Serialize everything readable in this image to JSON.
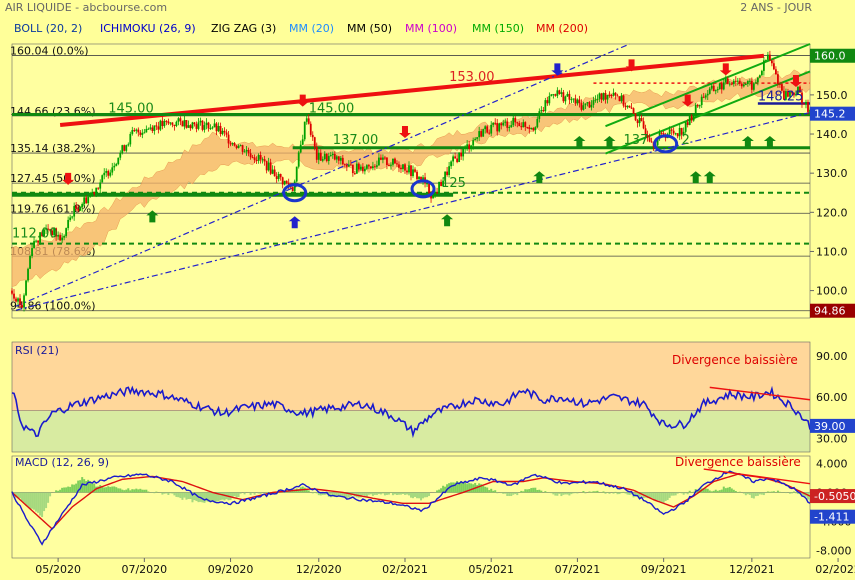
{
  "header": {
    "source": "AIR LIQUIDE - abcbourse.com",
    "period": "2 ANS - JOUR",
    "indicators": [
      {
        "label": "BOLL (20, 2)",
        "color": "#0b3a9e"
      },
      {
        "label": "ICHIMOKU (26, 9)",
        "color": "#0000cc"
      },
      {
        "label": "ZIG ZAG (3)",
        "color": "#000000"
      },
      {
        "label": "MM (20)",
        "color": "#1e8cff"
      },
      {
        "label": "MM (50)",
        "color": "#000000"
      },
      {
        "label": "MM (100)",
        "color": "#cc00cc"
      },
      {
        "label": "MM (150)",
        "color": "#00aa00"
      },
      {
        "label": "MM (200)",
        "color": "#dd0000"
      }
    ]
  },
  "x_axis": {
    "labels": [
      "05/2020",
      "07/2020",
      "09/2020",
      "12/2020",
      "02/2021",
      "05/2021",
      "07/2021",
      "09/2021",
      "12/2021",
      "02/2022"
    ],
    "label_index": [
      23,
      66,
      109,
      153,
      196,
      239,
      282,
      325,
      369,
      412
    ]
  },
  "chart_data": [
    {
      "id": "price",
      "type": "candlestick",
      "ylim": [
        93,
        163
      ],
      "y_ticks": [
        100,
        110,
        120,
        130,
        140,
        150
      ],
      "last_price": "145.2",
      "top_tag": "160.0",
      "low_tag": "94.86",
      "fib_levels": [
        {
          "value": 160.04,
          "label": "160.04  (0.0%)"
        },
        {
          "value": 144.66,
          "label": "144.66  (23.6%)"
        },
        {
          "value": 135.14,
          "label": "135.14  (38.2%)"
        },
        {
          "value": 127.45,
          "label": "127.45  (50.0%)"
        },
        {
          "value": 119.76,
          "label": "119.76  (61.8%)"
        },
        {
          "value": 108.81,
          "label": "108.81  (78.6%)"
        },
        {
          "value": 94.86,
          "label": "94.86  (100.0%)"
        }
      ],
      "annotations": [
        {
          "text": "153.00",
          "color": "#dd2222",
          "x": 218,
          "y": 153
        },
        {
          "text": "145.00",
          "color": "#1a8a1a",
          "x": 48,
          "y": 145
        },
        {
          "text": "145.00",
          "color": "#1a8a1a",
          "x": 148,
          "y": 145
        },
        {
          "text": "137.00",
          "color": "#1a8a1a",
          "x": 160,
          "y": 137
        },
        {
          "text": "137",
          "color": "#1a8a1a",
          "x": 305,
          "y": 137
        },
        {
          "text": "2",
          "color": "#1a8a1a",
          "x": 334,
          "y": 137
        },
        {
          "text": "125",
          "color": "#1a8a1a",
          "x": 214,
          "y": 126
        },
        {
          "text": "112.00",
          "color": "#1a8a1a",
          "x": 0,
          "y": 113
        },
        {
          "text": "148.25",
          "color": "#1a1a99",
          "x": 372,
          "y": 148
        }
      ],
      "price_path": [
        [
          0,
          100
        ],
        [
          5,
          96
        ],
        [
          10,
          112
        ],
        [
          18,
          116
        ],
        [
          25,
          113
        ],
        [
          30,
          120
        ],
        [
          40,
          125
        ],
        [
          50,
          132
        ],
        [
          60,
          140
        ],
        [
          70,
          142
        ],
        [
          85,
          143
        ],
        [
          100,
          142
        ],
        [
          110,
          138
        ],
        [
          125,
          133
        ],
        [
          135,
          128
        ],
        [
          140,
          126
        ],
        [
          147,
          145
        ],
        [
          152,
          134
        ],
        [
          160,
          134
        ],
        [
          170,
          131
        ],
        [
          185,
          133
        ],
        [
          195,
          132
        ],
        [
          205,
          128
        ],
        [
          210,
          124
        ],
        [
          220,
          133
        ],
        [
          235,
          141
        ],
        [
          250,
          143
        ],
        [
          260,
          142
        ],
        [
          270,
          151
        ],
        [
          285,
          147
        ],
        [
          300,
          151
        ],
        [
          310,
          145
        ],
        [
          320,
          138
        ],
        [
          325,
          140
        ],
        [
          335,
          141
        ],
        [
          345,
          150
        ],
        [
          360,
          154
        ],
        [
          370,
          152
        ],
        [
          377,
          160
        ],
        [
          385,
          150
        ],
        [
          392,
          151
        ],
        [
          398,
          145
        ]
      ],
      "ichimoku_cloud": [
        [
          0,
          101,
          111
        ],
        [
          20,
          105,
          113
        ],
        [
          40,
          110,
          118
        ],
        [
          60,
          121,
          126
        ],
        [
          80,
          125,
          133
        ],
        [
          100,
          131,
          140
        ],
        [
          120,
          133,
          137
        ],
        [
          140,
          133,
          137
        ],
        [
          160,
          131,
          136
        ],
        [
          180,
          131,
          136
        ],
        [
          200,
          132,
          136
        ],
        [
          220,
          136,
          140
        ],
        [
          240,
          139,
          143
        ],
        [
          260,
          140,
          145
        ],
        [
          275,
          143,
          147
        ],
        [
          290,
          145,
          149
        ],
        [
          310,
          148,
          151
        ],
        [
          330,
          147,
          150
        ],
        [
          350,
          149,
          153
        ],
        [
          370,
          150,
          154
        ],
        [
          398,
          151,
          156
        ]
      ],
      "rsi_label": "RSI (21)"
    },
    {
      "id": "rsi",
      "type": "line",
      "title": "RSI (21)",
      "ylim": [
        20,
        100
      ],
      "y_ticks": [
        30,
        60,
        90
      ],
      "last_value": "39.00",
      "annotation": "Divergence baissière",
      "series": [
        [
          0,
          65
        ],
        [
          5,
          40
        ],
        [
          12,
          32
        ],
        [
          20,
          48
        ],
        [
          30,
          54
        ],
        [
          45,
          60
        ],
        [
          60,
          65
        ],
        [
          75,
          62
        ],
        [
          90,
          55
        ],
        [
          105,
          48
        ],
        [
          115,
          52
        ],
        [
          130,
          55
        ],
        [
          145,
          48
        ],
        [
          160,
          52
        ],
        [
          175,
          55
        ],
        [
          190,
          46
        ],
        [
          200,
          35
        ],
        [
          210,
          48
        ],
        [
          230,
          58
        ],
        [
          245,
          55
        ],
        [
          255,
          65
        ],
        [
          265,
          58
        ],
        [
          275,
          60
        ],
        [
          285,
          55
        ],
        [
          300,
          60
        ],
        [
          315,
          55
        ],
        [
          325,
          40
        ],
        [
          335,
          40
        ],
        [
          345,
          55
        ],
        [
          358,
          62
        ],
        [
          370,
          60
        ],
        [
          378,
          64
        ],
        [
          390,
          52
        ],
        [
          398,
          39
        ]
      ]
    },
    {
      "id": "macd",
      "type": "line",
      "title": "MACD (12, 26, 9)",
      "ylim": [
        -9,
        5
      ],
      "y_ticks": [
        -8,
        -4,
        0,
        4
      ],
      "tick_labels": [
        "-8.000",
        "-4.000",
        "0.000",
        "4.000"
      ],
      "annotation": "Divergence baissière",
      "values_tags": [
        "-0.5050",
        "-1.411"
      ],
      "macd": [
        [
          0,
          0
        ],
        [
          8,
          -4
        ],
        [
          15,
          -7
        ],
        [
          25,
          -3
        ],
        [
          35,
          1
        ],
        [
          50,
          2
        ],
        [
          65,
          2.5
        ],
        [
          80,
          1.5
        ],
        [
          95,
          -1
        ],
        [
          110,
          -1.5
        ],
        [
          125,
          -0.5
        ],
        [
          145,
          1
        ],
        [
          160,
          -0.5
        ],
        [
          175,
          -1
        ],
        [
          190,
          -1.5
        ],
        [
          205,
          -2.5
        ],
        [
          220,
          1
        ],
        [
          235,
          2
        ],
        [
          250,
          1
        ],
        [
          260,
          2.5
        ],
        [
          275,
          1.2
        ],
        [
          290,
          1.5
        ],
        [
          305,
          0.5
        ],
        [
          315,
          -1
        ],
        [
          325,
          -3
        ],
        [
          335,
          -1.5
        ],
        [
          345,
          1
        ],
        [
          358,
          3
        ],
        [
          370,
          1.5
        ],
        [
          378,
          2
        ],
        [
          390,
          0.5
        ],
        [
          398,
          -1.4
        ]
      ],
      "signal": [
        [
          0,
          0
        ],
        [
          12,
          -3
        ],
        [
          20,
          -5
        ],
        [
          30,
          -2
        ],
        [
          42,
          0.5
        ],
        [
          55,
          1.8
        ],
        [
          70,
          2.2
        ],
        [
          85,
          1.5
        ],
        [
          100,
          0
        ],
        [
          115,
          -1
        ],
        [
          130,
          0
        ],
        [
          150,
          0.5
        ],
        [
          165,
          0
        ],
        [
          180,
          -0.8
        ],
        [
          195,
          -1.5
        ],
        [
          208,
          -1.5
        ],
        [
          225,
          0
        ],
        [
          240,
          1.5
        ],
        [
          255,
          1.5
        ],
        [
          265,
          2
        ],
        [
          280,
          1.5
        ],
        [
          295,
          1.2
        ],
        [
          310,
          0.3
        ],
        [
          320,
          -1
        ],
        [
          330,
          -2
        ],
        [
          340,
          -0.5
        ],
        [
          350,
          1.5
        ],
        [
          362,
          2.5
        ],
        [
          375,
          2
        ],
        [
          385,
          1.2
        ],
        [
          398,
          -0.5
        ]
      ]
    }
  ]
}
